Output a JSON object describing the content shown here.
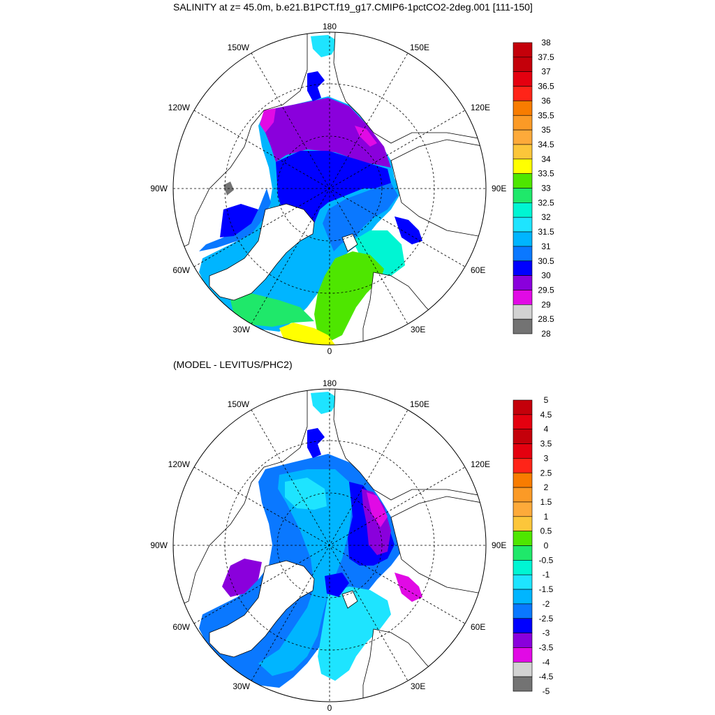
{
  "panels": [
    {
      "title": "SALINITY at z=  45.0m, b.e21.B1PCT.f19_g17.CMIP6-1pctCO2-2deg.001 [111-150]",
      "longitude_labels": {
        "top": "180",
        "bottom": "0",
        "left": "90W",
        "right": "90E",
        "ul1": "150W",
        "ul2": "120W",
        "ur1": "150E",
        "ur2": "120E",
        "ll1": "60W",
        "ll2": "30W",
        "lr1": "60E",
        "lr2": "30E"
      },
      "colorbar": {
        "labels": [
          "38",
          "37.5",
          "37",
          "36.5",
          "36",
          "35.5",
          "35",
          "34.5",
          "34",
          "33.5",
          "33",
          "32.5",
          "32",
          "31.5",
          "31",
          "30.5",
          "30",
          "29.5",
          "29",
          "28.5",
          "28"
        ],
        "colors": [
          "#c4000a",
          "#e4000f",
          "#ff2418",
          "#f87c00",
          "#fb9a26",
          "#fdaa3a",
          "#fcc63a",
          "#ffff00",
          "#4ee600",
          "#1fe86a",
          "#00f5d3",
          "#1ee4ff",
          "#00b5ff",
          "#0a78ff",
          "#0000ff",
          "#8a00dc",
          "#e10ae5",
          "#d2d2d2",
          "#737373"
        ]
      }
    },
    {
      "title": "(MODEL - LEVITUS/PHC2)",
      "longitude_labels": {
        "top": "180",
        "bottom": "0",
        "left": "90W",
        "right": "90E",
        "ul1": "150W",
        "ul2": "120W",
        "ur1": "150E",
        "ur2": "120E",
        "ll1": "60W",
        "ll2": "30W",
        "lr1": "60E",
        "lr2": "30E"
      },
      "colorbar": {
        "labels": [
          "5",
          "4.5",
          "4",
          "3.5",
          "3",
          "2.5",
          "2",
          "1.5",
          "1",
          "0.5",
          "0",
          "-0.5",
          "-1",
          "-1.5",
          "-2",
          "-2.5",
          "-3",
          "-3.5",
          "-4",
          "-4.5",
          "-5"
        ],
        "colors": [
          "#c4000a",
          "#e4000f",
          "#ff2418",
          "#f87c00",
          "#fb9a26",
          "#fdaa3a",
          "#fcc63a",
          "#4ee600",
          "#1fe86a",
          "#00f5d3",
          "#1ee4ff",
          "#00b5ff",
          "#0a78ff",
          "#0000ff",
          "#8a00dc",
          "#e10ae5",
          "#d2d2d2",
          "#737373"
        ]
      }
    }
  ],
  "colors": {
    "ocean_cyan": "#1ee4ff",
    "ocean_aqua": "#00f5d3",
    "ocean_sky": "#00b5ff",
    "ocean_blue": "#0a78ff",
    "ocean_navy": "#0000ff",
    "purple": "#8a00dc",
    "magenta": "#e10ae5",
    "green": "#4ee600",
    "green2": "#1fe86a",
    "yellow": "#ffff00",
    "grey": "#737373",
    "land": "#ffffff"
  }
}
